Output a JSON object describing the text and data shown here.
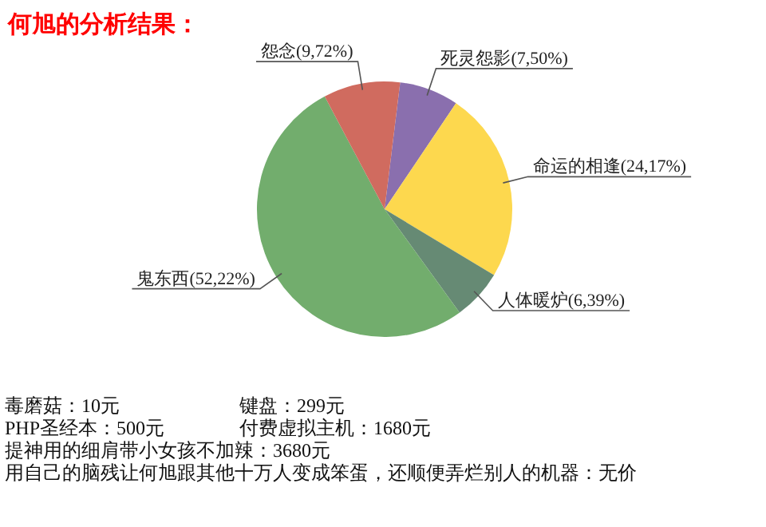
{
  "chart_data": {
    "type": "pie",
    "title": "何旭的分析结果：",
    "categories": [
      "死灵怨影",
      "命运的相逢",
      "人体暖炉",
      "鬼东西",
      "怨念"
    ],
    "values": [
      7.5,
      24.17,
      6.39,
      52.22,
      9.72
    ],
    "value_labels": [
      "(7,50%)",
      "(24,17%)",
      "(6,39%)",
      "(52,22%)",
      "(9,72%)"
    ],
    "colors": [
      "#8a6fae",
      "#fdd84e",
      "#668a74",
      "#72ad6d",
      "#d06b5f"
    ],
    "annotations": [
      "毒磨菇：10元",
      "键盘：299元",
      "PHP圣经本：500元",
      "付费虚拟主机：1680元",
      "提神用的细肩带小女孩不加辣：3680元",
      "用自己的脑残让何旭跟其他十万人变成笨蛋，还顺便弄烂别人的机器：无价"
    ]
  }
}
